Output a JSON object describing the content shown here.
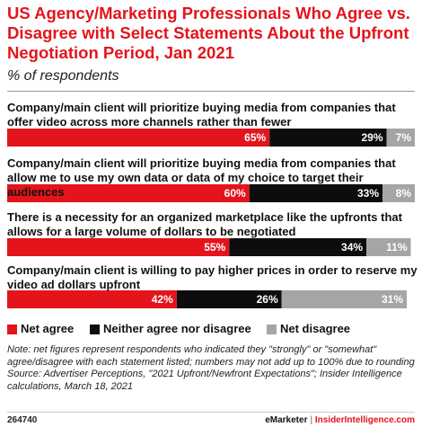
{
  "chart_data": {
    "type": "stacked-bar-horizontal",
    "title": "US Agency/Marketing Professionals Who Agree vs. Disagree with Select Statements About the Upfront Negotiation Period, Jan 2021",
    "subtitle": "% of respondents",
    "categories": [
      "Company/main client will prioritize buying media from companies that offer video across more channels rather than fewer",
      "Company/main client will prioritize buying media from companies that allow me to use my own data or data of my choice to target their audiences",
      "There is a necessity for an organized marketplace like the upfronts that allows for a large volume of dollars to be negotiated",
      "Company/main client is willing to pay higher prices in order to reserve my video ad dollars upfront"
    ],
    "series": [
      {
        "name": "Net agree",
        "color": "#e3141c",
        "values": [
          65,
          60,
          55,
          42
        ],
        "value_labels": [
          "65%",
          "60%",
          "55%",
          "42%"
        ]
      },
      {
        "name": "Neither agree nor disagree",
        "color": "#0d0d0d",
        "values": [
          29,
          33,
          34,
          26
        ],
        "value_labels": [
          "29%",
          "33%",
          "34%",
          "26%"
        ]
      },
      {
        "name": "Net disagree",
        "color": "#a5a5a5",
        "values": [
          7,
          8,
          11,
          31
        ],
        "value_labels": [
          "7%",
          "8%",
          "11%",
          "31%"
        ]
      }
    ],
    "xlim": [
      0,
      101
    ],
    "legend": "bottom",
    "note": "Note: net figures represent respondents who indicated they \"strongly\" or \"somewhat\" agree/disagree with each statement listed; numbers may not add up to 100% due to rounding",
    "source": "Source: Advertiser Perceptions, \"2021 Upfront/Newfront Expectations\"; Insider Intelligence calculations, March 18, 2021",
    "footer_id": "264740",
    "footer_brand": "eMarketer",
    "footer_separator": "|",
    "footer_site": "InsiderIntelligence.com"
  }
}
